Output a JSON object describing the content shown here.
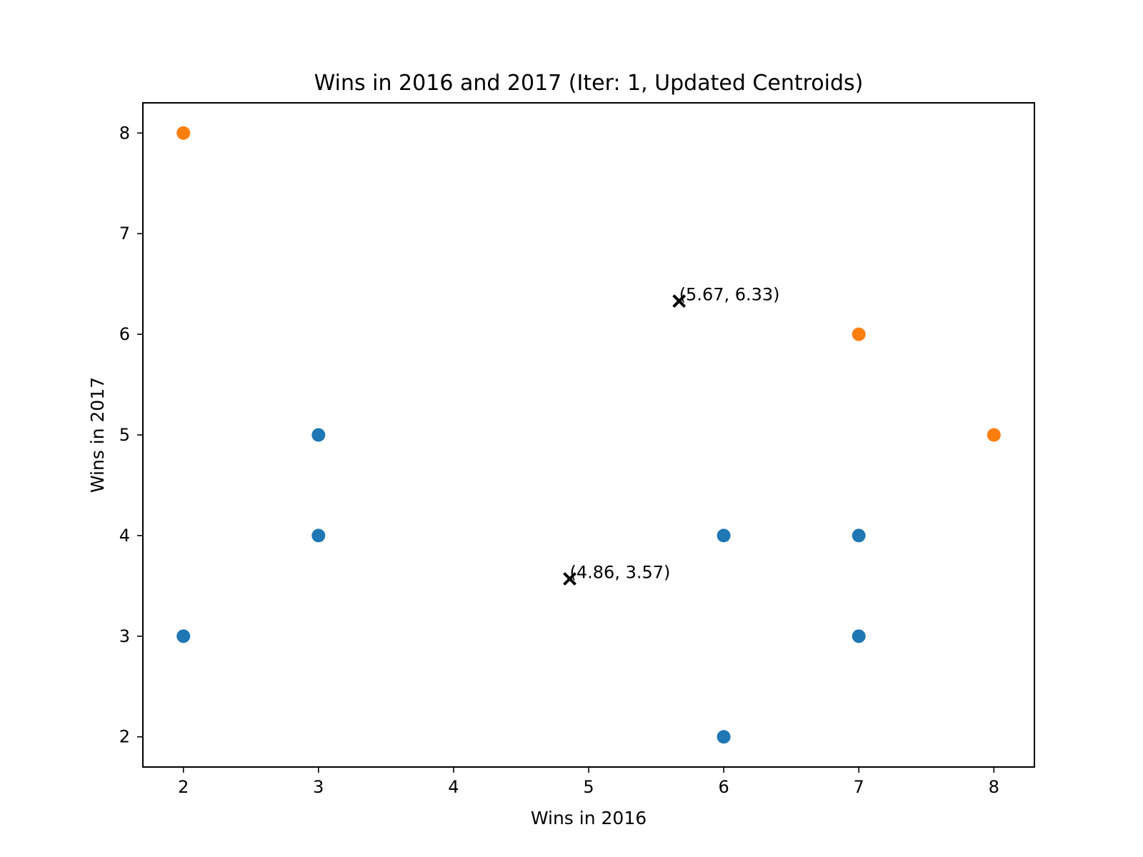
{
  "chart_data": {
    "type": "scatter",
    "title": "Wins in 2016 and 2017 (Iter: 1, Updated Centroids)",
    "xlabel": "Wins in 2016",
    "ylabel": "Wins in 2017",
    "xlim": [
      1.7,
      8.3
    ],
    "ylim": [
      1.7,
      8.3
    ],
    "xticks": [
      2,
      3,
      4,
      5,
      6,
      7,
      8
    ],
    "yticks": [
      2,
      3,
      4,
      5,
      6,
      7,
      8
    ],
    "grid": false,
    "series": [
      {
        "color": "#1f77b4",
        "points": [
          [
            2,
            3
          ],
          [
            3,
            4
          ],
          [
            3,
            5
          ],
          [
            6,
            2
          ],
          [
            6,
            4
          ],
          [
            7,
            3
          ],
          [
            7,
            4
          ]
        ]
      },
      {
        "color": "#ff7f0e",
        "points": [
          [
            2,
            8
          ],
          [
            7,
            6
          ],
          [
            8,
            5
          ]
        ]
      }
    ],
    "centroids": [
      {
        "x": 4.86,
        "y": 3.57,
        "label": "(4.86, 3.57)",
        "marker": "x",
        "color": "#000000"
      },
      {
        "x": 5.67,
        "y": 6.33,
        "label": "(5.67, 6.33)",
        "marker": "x",
        "color": "#000000"
      }
    ]
  }
}
